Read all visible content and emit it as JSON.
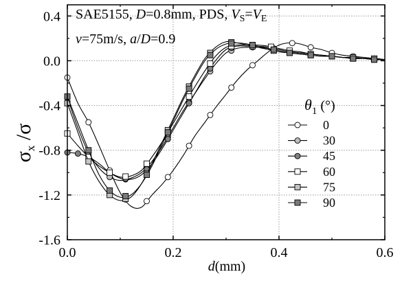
{
  "chart_data": {
    "type": "line",
    "annotation": {
      "line1": [
        {
          "text": "SAE5155, ",
          "style": "normal"
        },
        {
          "text": "D",
          "style": "italic"
        },
        {
          "text": "=0.8mm, PDS, ",
          "style": "normal"
        },
        {
          "text": "V",
          "style": "italic"
        },
        {
          "text": "S",
          "style": "sub"
        },
        {
          "text": "=",
          "style": "normal"
        },
        {
          "text": "V",
          "style": "italic"
        },
        {
          "text": "E",
          "style": "sub"
        }
      ],
      "line2": [
        {
          "text": "v",
          "style": "italic"
        },
        {
          "text": "=75m/s, ",
          "style": "normal"
        },
        {
          "text": "a",
          "style": "italic"
        },
        {
          "text": "/",
          "style": "normal"
        },
        {
          "text": "D",
          "style": "italic"
        },
        {
          "text": "=0.9",
          "style": "normal"
        }
      ]
    },
    "xlabel": {
      "var": "d",
      "unit": "(mm)"
    },
    "ylabel": {
      "num": "σ",
      "num_sub": "x",
      "slash": " /",
      "den": "σ"
    },
    "xlim": [
      0.0,
      0.6
    ],
    "ylim": [
      -1.6,
      0.5
    ],
    "xticks": [
      "0.0",
      "0.2",
      "0.4",
      "0.6"
    ],
    "yticks": [
      "0.4",
      "0.0",
      "-0.4",
      "-0.8",
      "-1.2",
      "-1.6"
    ],
    "grid": true,
    "legend": {
      "title": {
        "var": "θ",
        "sub": "1",
        "unit": " (°)"
      },
      "placement": "right"
    },
    "colors": {
      "axis": "#000000",
      "grid": "#9a9a9a",
      "line": "#000000"
    },
    "series": [
      {
        "name": "0",
        "marker": "circle",
        "fill": "#ffffff",
        "x": [
          0.0,
          0.02,
          0.04,
          0.06,
          0.08,
          0.1,
          0.12,
          0.14,
          0.16,
          0.18,
          0.2,
          0.22,
          0.24,
          0.26,
          0.28,
          0.3,
          0.32,
          0.34,
          0.36,
          0.38,
          0.4,
          0.42,
          0.44,
          0.46,
          0.48,
          0.5,
          0.52,
          0.54,
          0.56,
          0.58,
          0.6
        ],
        "y": [
          -0.15,
          -0.38,
          -0.55,
          -0.76,
          -0.98,
          -1.18,
          -1.3,
          -1.31,
          -1.2,
          -1.1,
          -0.98,
          -0.84,
          -0.68,
          -0.55,
          -0.42,
          -0.3,
          -0.18,
          -0.08,
          0.0,
          0.08,
          0.14,
          0.16,
          0.15,
          0.12,
          0.1,
          0.07,
          0.05,
          0.04,
          0.03,
          0.02,
          0.01
        ],
        "marked_x": [
          0.0,
          0.04,
          0.08,
          0.11,
          0.15,
          0.19,
          0.23,
          0.27,
          0.31,
          0.35,
          0.39,
          0.425,
          0.46,
          0.5,
          0.54,
          0.58
        ]
      },
      {
        "name": "30",
        "marker": "circle",
        "fill": "#bdbdbd",
        "x": [
          0.0,
          0.02,
          0.04,
          0.06,
          0.08,
          0.1,
          0.12,
          0.14,
          0.16,
          0.18,
          0.2,
          0.22,
          0.24,
          0.26,
          0.28,
          0.3,
          0.32,
          0.34,
          0.36,
          0.38,
          0.4,
          0.42,
          0.44,
          0.46,
          0.48,
          0.5,
          0.52,
          0.54,
          0.56,
          0.58,
          0.6
        ],
        "y": [
          -0.33,
          -0.6,
          -0.82,
          -0.96,
          -1.04,
          -1.07,
          -1.05,
          -1.0,
          -0.9,
          -0.76,
          -0.6,
          -0.44,
          -0.3,
          -0.16,
          -0.03,
          0.07,
          0.11,
          0.12,
          0.12,
          0.11,
          0.1,
          0.08,
          0.07,
          0.06,
          0.05,
          0.04,
          0.03,
          0.03,
          0.02,
          0.02,
          0.01
        ],
        "marked_x": [
          0.0,
          0.04,
          0.08,
          0.11,
          0.15,
          0.19,
          0.23,
          0.27,
          0.31,
          0.35,
          0.39,
          0.42,
          0.46,
          0.5,
          0.54,
          0.58
        ]
      },
      {
        "name": "45",
        "marker": "circle",
        "fill": "#808080",
        "x": [
          0.0,
          0.02,
          0.04,
          0.06,
          0.08,
          0.1,
          0.12,
          0.14,
          0.16,
          0.18,
          0.2,
          0.22,
          0.24,
          0.26,
          0.28,
          0.3,
          0.32,
          0.34,
          0.36,
          0.38,
          0.4,
          0.42,
          0.44,
          0.46,
          0.48,
          0.5,
          0.52,
          0.54,
          0.56,
          0.58,
          0.6
        ],
        "y": [
          -0.82,
          -0.83,
          -0.86,
          -0.92,
          -1.0,
          -1.05,
          -1.06,
          -1.02,
          -0.92,
          -0.78,
          -0.62,
          -0.46,
          -0.3,
          -0.14,
          0.0,
          0.1,
          0.13,
          0.13,
          0.13,
          0.12,
          0.1,
          0.08,
          0.07,
          0.06,
          0.05,
          0.04,
          0.03,
          0.03,
          0.02,
          0.02,
          0.01
        ],
        "marked_x": [
          0.0,
          0.02,
          0.08,
          0.11,
          0.15,
          0.19,
          0.23,
          0.27,
          0.31,
          0.35,
          0.39,
          0.42,
          0.46,
          0.5,
          0.54,
          0.58
        ]
      },
      {
        "name": "60",
        "marker": "square",
        "fill": "#ffffff",
        "x": [
          0.0,
          0.02,
          0.04,
          0.06,
          0.08,
          0.1,
          0.12,
          0.14,
          0.16,
          0.18,
          0.2,
          0.22,
          0.24,
          0.26,
          0.28,
          0.3,
          0.32,
          0.34,
          0.36,
          0.38,
          0.4,
          0.42,
          0.44,
          0.46,
          0.48,
          0.5,
          0.52,
          0.54,
          0.56,
          0.58,
          0.6
        ],
        "y": [
          -0.65,
          -0.76,
          -0.86,
          -0.94,
          -1.0,
          -1.04,
          -1.03,
          -0.98,
          -0.86,
          -0.72,
          -0.56,
          -0.4,
          -0.24,
          -0.09,
          0.04,
          0.12,
          0.14,
          0.14,
          0.14,
          0.13,
          0.11,
          0.09,
          0.08,
          0.06,
          0.05,
          0.04,
          0.03,
          0.03,
          0.02,
          0.02,
          0.01
        ],
        "marked_x": [
          0.0,
          0.04,
          0.08,
          0.11,
          0.15,
          0.19,
          0.23,
          0.27,
          0.31,
          0.35,
          0.385,
          0.42,
          0.46,
          0.5,
          0.54,
          0.58
        ]
      },
      {
        "name": "75",
        "marker": "square",
        "fill": "#c4c4c4",
        "x": [
          0.0,
          0.02,
          0.04,
          0.06,
          0.08,
          0.1,
          0.12,
          0.14,
          0.16,
          0.18,
          0.2,
          0.22,
          0.24,
          0.26,
          0.28,
          0.3,
          0.32,
          0.34,
          0.36,
          0.38,
          0.4,
          0.42,
          0.44,
          0.46,
          0.48,
          0.5,
          0.52,
          0.54,
          0.56,
          0.58,
          0.6
        ],
        "y": [
          -0.38,
          -0.64,
          -0.9,
          -1.08,
          -1.2,
          -1.25,
          -1.22,
          -1.1,
          -0.92,
          -0.72,
          -0.52,
          -0.32,
          -0.14,
          0.02,
          0.12,
          0.17,
          0.16,
          0.14,
          0.12,
          0.1,
          0.08,
          0.07,
          0.06,
          0.05,
          0.04,
          0.04,
          0.03,
          0.02,
          0.02,
          0.01,
          0.01
        ],
        "marked_x": [
          0.0,
          0.04,
          0.08,
          0.11,
          0.15,
          0.19,
          0.23,
          0.27,
          0.31,
          0.35,
          0.39,
          0.42,
          0.46,
          0.5,
          0.54,
          0.58
        ]
      },
      {
        "name": "90",
        "marker": "square",
        "fill": "#7a7a7a",
        "x": [
          0.0,
          0.02,
          0.04,
          0.06,
          0.08,
          0.1,
          0.12,
          0.14,
          0.16,
          0.18,
          0.2,
          0.22,
          0.24,
          0.26,
          0.28,
          0.3,
          0.32,
          0.34,
          0.36,
          0.38,
          0.4,
          0.42,
          0.44,
          0.46,
          0.48,
          0.5,
          0.52,
          0.54,
          0.56,
          0.58,
          0.6
        ],
        "y": [
          -0.32,
          -0.56,
          -0.8,
          -1.02,
          -1.16,
          -1.22,
          -1.2,
          -1.1,
          -0.94,
          -0.74,
          -0.54,
          -0.34,
          -0.16,
          0.0,
          0.1,
          0.15,
          0.16,
          0.15,
          0.13,
          0.11,
          0.09,
          0.07,
          0.06,
          0.05,
          0.04,
          0.04,
          0.03,
          0.02,
          0.02,
          0.01,
          0.01
        ],
        "marked_x": [
          0.0,
          0.04,
          0.08,
          0.11,
          0.15,
          0.19,
          0.23,
          0.27,
          0.31,
          0.35,
          0.39,
          0.42,
          0.46,
          0.5,
          0.54,
          0.58
        ]
      }
    ]
  }
}
